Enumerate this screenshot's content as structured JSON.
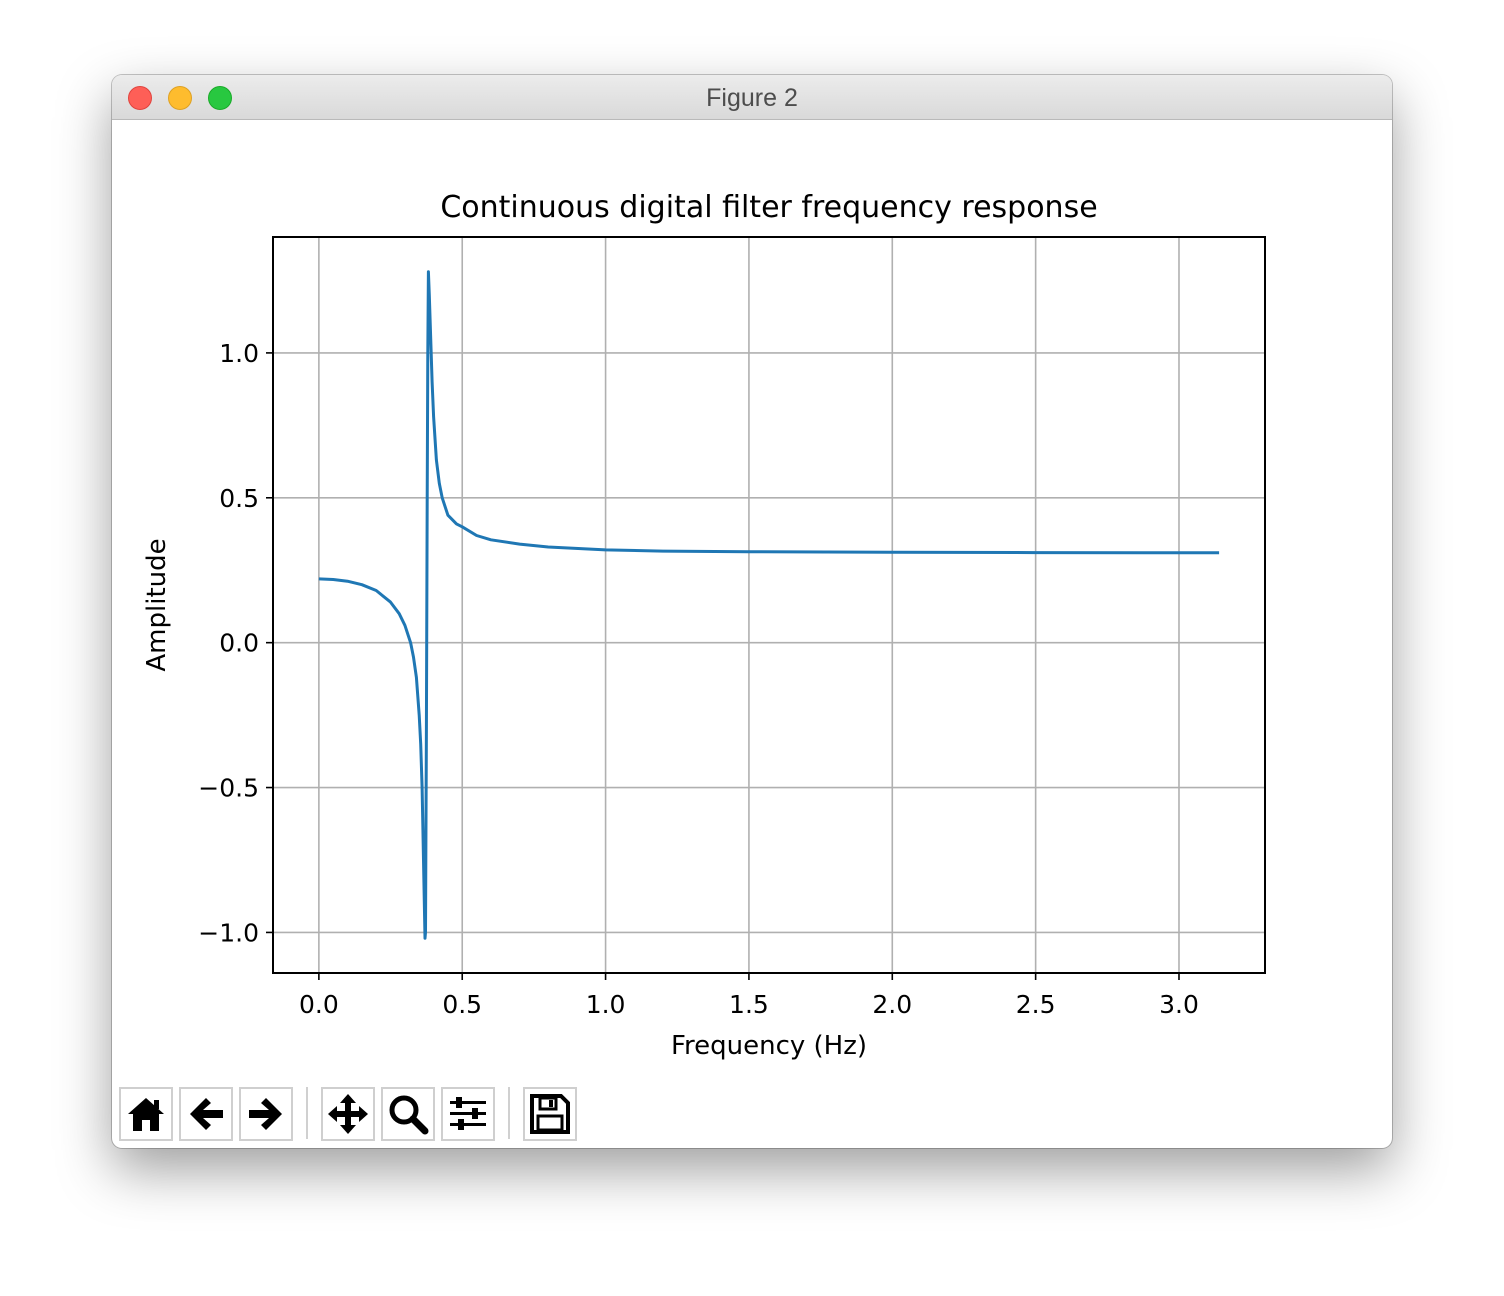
{
  "window": {
    "title": "Figure 2"
  },
  "toolbar": {
    "buttons": [
      {
        "name": "home-button",
        "icon": "home-icon"
      },
      {
        "name": "back-button",
        "icon": "arrow-left-icon"
      },
      {
        "name": "forward-button",
        "icon": "arrow-right-icon"
      },
      {
        "name": "pan-button",
        "icon": "move-icon"
      },
      {
        "name": "zoom-button",
        "icon": "magnifier-icon"
      },
      {
        "name": "configure-subplots-button",
        "icon": "sliders-icon"
      },
      {
        "name": "save-button",
        "icon": "floppy-disk-icon"
      }
    ]
  },
  "chart_data": {
    "type": "line",
    "title": "Continuous digital filter frequency response",
    "xlabel": "Frequency (Hz)",
    "ylabel": "Amplitude",
    "xlim": [
      -0.16,
      3.3
    ],
    "ylim": [
      -1.14,
      1.4
    ],
    "xticks": [
      0.0,
      0.5,
      1.0,
      1.5,
      2.0,
      2.5,
      3.0
    ],
    "xtick_labels": [
      "0.0",
      "0.5",
      "1.0",
      "1.5",
      "2.0",
      "2.5",
      "3.0"
    ],
    "yticks": [
      -1.0,
      -0.5,
      0.0,
      0.5,
      1.0
    ],
    "ytick_labels": [
      "−1.0",
      "−0.5",
      "0.0",
      "0.5",
      "1.0"
    ],
    "grid": true,
    "line_color": "#1f77b4",
    "series": [
      {
        "x": [
          0.0,
          0.05,
          0.1,
          0.15,
          0.2,
          0.25,
          0.28,
          0.3,
          0.32,
          0.33,
          0.34,
          0.35,
          0.355,
          0.36,
          0.365,
          0.37,
          0.372,
          0.375,
          0.378,
          0.38,
          0.382,
          0.385,
          0.39,
          0.395,
          0.4,
          0.41,
          0.42,
          0.43,
          0.45,
          0.48,
          0.5,
          0.55,
          0.6,
          0.7,
          0.8,
          1.0,
          1.2,
          1.5,
          2.0,
          2.5,
          3.14
        ],
        "y": [
          0.22,
          0.218,
          0.212,
          0.2,
          0.18,
          0.14,
          0.1,
          0.06,
          0.0,
          -0.05,
          -0.12,
          -0.25,
          -0.35,
          -0.5,
          -0.75,
          -1.02,
          -1.0,
          -0.3,
          0.5,
          1.0,
          1.28,
          1.2,
          1.05,
          0.9,
          0.78,
          0.63,
          0.55,
          0.5,
          0.44,
          0.41,
          0.4,
          0.37,
          0.355,
          0.34,
          0.33,
          0.32,
          0.316,
          0.314,
          0.312,
          0.311,
          0.31
        ]
      }
    ]
  }
}
